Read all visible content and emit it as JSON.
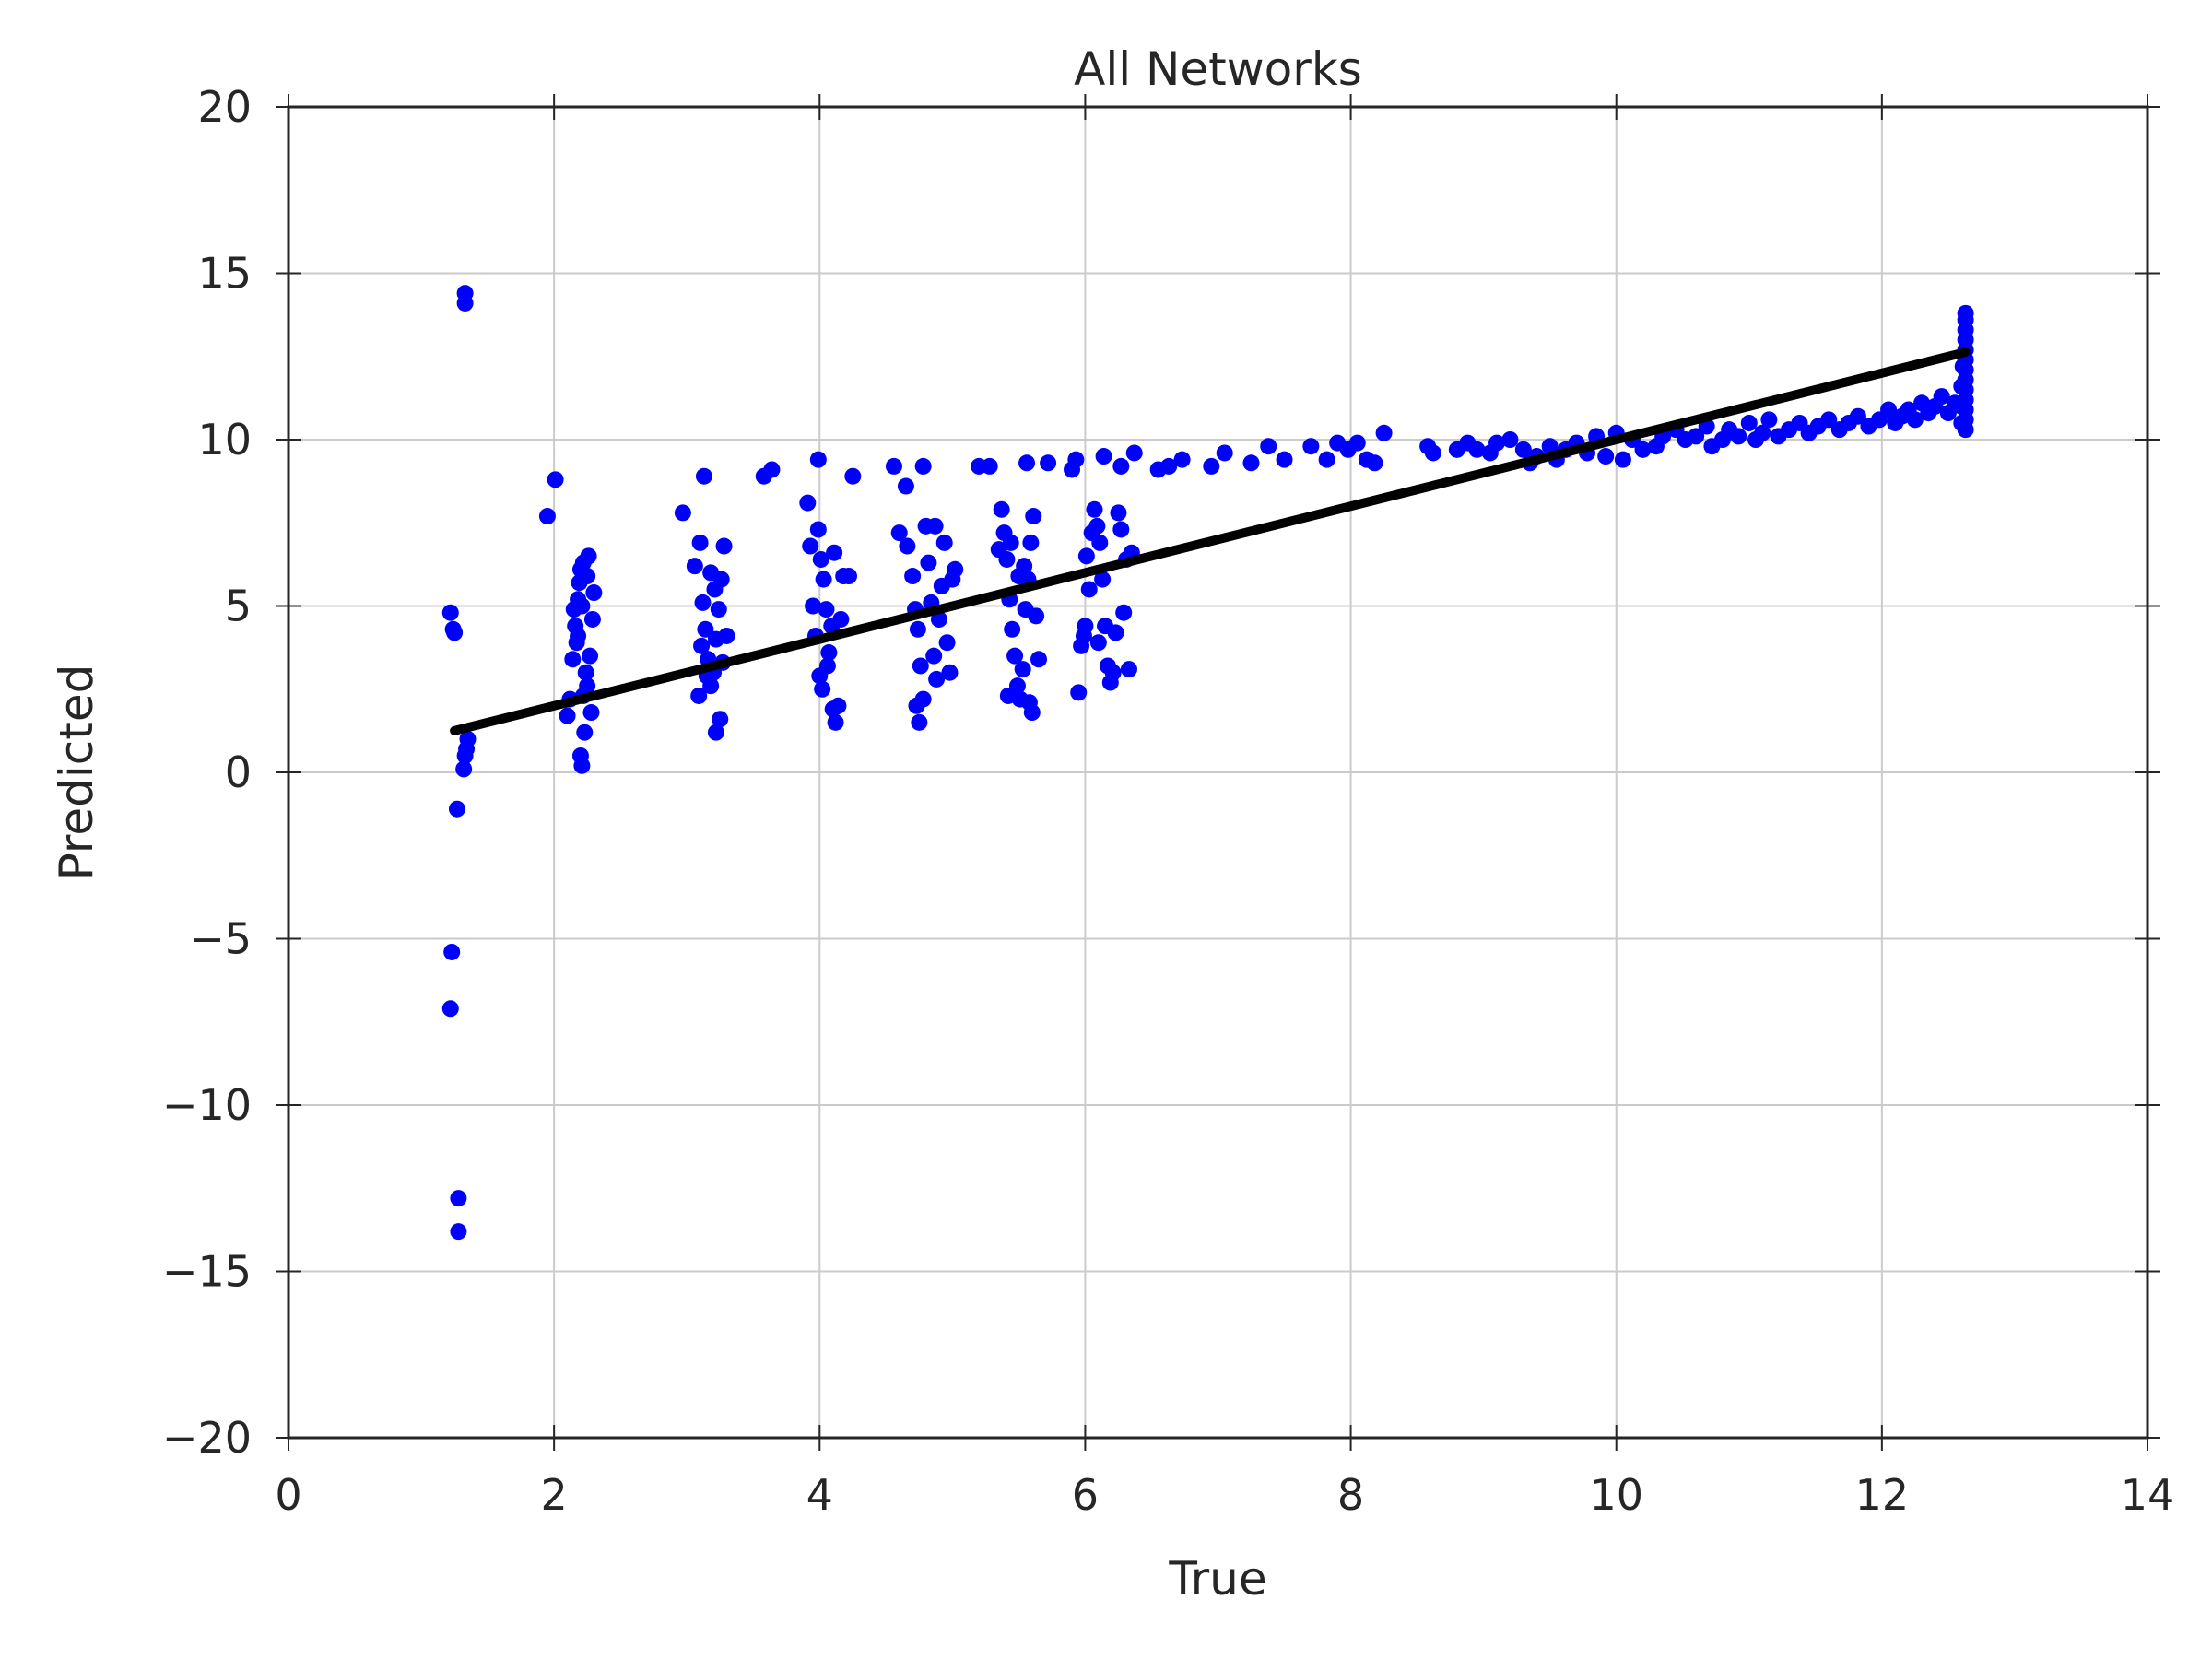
{
  "chart_data": {
    "type": "scatter",
    "title": "All Networks",
    "xlabel": "True",
    "ylabel": "Predicted",
    "xlim": [
      0,
      14
    ],
    "ylim": [
      -20,
      20
    ],
    "x_ticks": [
      0,
      2,
      4,
      6,
      8,
      10,
      12,
      14
    ],
    "y_ticks": [
      -20,
      -15,
      -10,
      -5,
      0,
      5,
      10,
      15,
      20
    ],
    "x_tick_labels": [
      "0",
      "2",
      "4",
      "6",
      "8",
      "10",
      "12",
      "14"
    ],
    "y_tick_labels": [
      "−20",
      "−15",
      "−10",
      "−5",
      "0",
      "5",
      "10",
      "15",
      "20"
    ],
    "grid": true,
    "colors": {
      "points": "#0000ff",
      "fit_line": "#000000",
      "grid": "#cbcbcb",
      "axes": "#262626"
    },
    "series": [
      {
        "type": "scatter",
        "points": [
          [
            1.22,
            4.8
          ],
          [
            1.24,
            4.3
          ],
          [
            1.25,
            4.2
          ],
          [
            1.23,
            -5.4
          ],
          [
            1.22,
            -7.1
          ],
          [
            1.28,
            -12.8
          ],
          [
            1.28,
            -13.8
          ],
          [
            1.27,
            -1.1
          ],
          [
            1.33,
            14.4
          ],
          [
            1.33,
            14.1
          ],
          [
            1.35,
            1.0
          ],
          [
            1.34,
            0.7
          ],
          [
            1.33,
            0.5
          ],
          [
            1.32,
            0.1
          ],
          [
            1.95,
            7.7
          ],
          [
            2.01,
            8.8
          ],
          [
            2.1,
            1.7
          ],
          [
            2.12,
            2.2
          ],
          [
            2.14,
            3.4
          ],
          [
            2.16,
            4.4
          ],
          [
            2.18,
            5.2
          ],
          [
            2.2,
            6.1
          ],
          [
            2.22,
            6.3
          ],
          [
            2.15,
            4.9
          ],
          [
            2.2,
            0.5
          ],
          [
            2.21,
            0.2
          ],
          [
            2.23,
            1.2
          ],
          [
            2.25,
            2.6
          ],
          [
            2.27,
            3.5
          ],
          [
            2.29,
            4.6
          ],
          [
            2.3,
            5.4
          ],
          [
            2.26,
            6.5
          ],
          [
            2.19,
            5.7
          ],
          [
            2.17,
            3.9
          ],
          [
            2.24,
            3.0
          ],
          [
            2.28,
            1.8
          ],
          [
            2.22,
            2.3
          ],
          [
            2.18,
            4.1
          ],
          [
            2.21,
            5.0
          ],
          [
            2.25,
            5.9
          ],
          [
            2.97,
            7.8
          ],
          [
            3.06,
            6.2
          ],
          [
            3.1,
            6.9
          ],
          [
            3.12,
            5.1
          ],
          [
            3.14,
            4.3
          ],
          [
            3.16,
            3.4
          ],
          [
            3.18,
            2.6
          ],
          [
            3.2,
            3.0
          ],
          [
            3.22,
            4.0
          ],
          [
            3.24,
            4.9
          ],
          [
            3.26,
            5.8
          ],
          [
            3.28,
            6.8
          ],
          [
            3.09,
            2.3
          ],
          [
            3.22,
            1.2
          ],
          [
            3.25,
            1.6
          ],
          [
            3.27,
            3.3
          ],
          [
            3.3,
            4.1
          ],
          [
            3.13,
            8.9
          ],
          [
            3.18,
            6.0
          ],
          [
            3.21,
            5.5
          ],
          [
            3.15,
            2.9
          ],
          [
            3.11,
            3.8
          ],
          [
            3.58,
            8.9
          ],
          [
            3.64,
            9.1
          ],
          [
            3.91,
            8.1
          ],
          [
            3.93,
            6.8
          ],
          [
            3.95,
            5.0
          ],
          [
            3.97,
            4.1
          ],
          [
            3.99,
            7.3
          ],
          [
            4.01,
            6.4
          ],
          [
            4.03,
            5.8
          ],
          [
            4.05,
            4.9
          ],
          [
            4.07,
            3.6
          ],
          [
            4.0,
            2.9
          ],
          [
            4.02,
            2.5
          ],
          [
            4.1,
            1.9
          ],
          [
            4.12,
            1.5
          ],
          [
            4.14,
            2.0
          ],
          [
            4.16,
            4.6
          ],
          [
            4.18,
            5.9
          ],
          [
            4.11,
            6.6
          ],
          [
            4.22,
            5.9
          ],
          [
            3.99,
            9.4
          ],
          [
            4.25,
            8.9
          ],
          [
            4.06,
            3.2
          ],
          [
            4.09,
            4.4
          ],
          [
            4.56,
            9.2
          ],
          [
            4.65,
            8.6
          ],
          [
            4.78,
            9.2
          ],
          [
            4.6,
            7.2
          ],
          [
            4.66,
            6.8
          ],
          [
            4.7,
            5.9
          ],
          [
            4.72,
            4.9
          ],
          [
            4.74,
            4.3
          ],
          [
            4.76,
            3.2
          ],
          [
            4.78,
            2.2
          ],
          [
            4.75,
            1.5
          ],
          [
            4.8,
            7.4
          ],
          [
            4.82,
            6.3
          ],
          [
            4.84,
            5.1
          ],
          [
            4.86,
            3.5
          ],
          [
            4.88,
            2.8
          ],
          [
            4.9,
            4.6
          ],
          [
            4.92,
            5.6
          ],
          [
            4.94,
            6.9
          ],
          [
            4.96,
            3.9
          ],
          [
            4.98,
            3.0
          ],
          [
            5.0,
            5.8
          ],
          [
            5.02,
            6.1
          ],
          [
            4.87,
            7.4
          ],
          [
            4.73,
            2.0
          ],
          [
            5.2,
            9.2
          ],
          [
            5.28,
            9.2
          ],
          [
            5.35,
            6.7
          ],
          [
            5.37,
            7.9
          ],
          [
            5.39,
            7.2
          ],
          [
            5.41,
            6.4
          ],
          [
            5.43,
            5.2
          ],
          [
            5.45,
            4.3
          ],
          [
            5.47,
            3.5
          ],
          [
            5.49,
            2.6
          ],
          [
            5.51,
            2.2
          ],
          [
            5.53,
            3.1
          ],
          [
            5.55,
            4.9
          ],
          [
            5.57,
            5.8
          ],
          [
            5.59,
            6.9
          ],
          [
            5.61,
            7.7
          ],
          [
            5.63,
            4.7
          ],
          [
            5.65,
            3.4
          ],
          [
            5.6,
            1.8
          ],
          [
            5.58,
            2.1
          ],
          [
            5.42,
            2.3
          ],
          [
            5.44,
            6.9
          ],
          [
            5.5,
            5.9
          ],
          [
            5.54,
            6.2
          ],
          [
            5.56,
            9.3
          ],
          [
            5.72,
            9.3
          ],
          [
            5.9,
            9.1
          ],
          [
            5.93,
            9.4
          ],
          [
            5.95,
            2.4
          ],
          [
            5.97,
            3.8
          ],
          [
            5.99,
            4.1
          ],
          [
            6.01,
            6.5
          ],
          [
            6.03,
            5.5
          ],
          [
            6.05,
            7.2
          ],
          [
            6.07,
            7.9
          ],
          [
            6.09,
            7.4
          ],
          [
            6.11,
            6.9
          ],
          [
            6.13,
            5.8
          ],
          [
            6.15,
            4.4
          ],
          [
            6.17,
            3.2
          ],
          [
            6.19,
            2.7
          ],
          [
            6.21,
            3.0
          ],
          [
            6.23,
            4.2
          ],
          [
            6.25,
            7.8
          ],
          [
            6.27,
            7.3
          ],
          [
            6.29,
            4.8
          ],
          [
            6.31,
            6.4
          ],
          [
            6.33,
            3.1
          ],
          [
            6.35,
            6.6
          ],
          [
            6.0,
            4.4
          ],
          [
            6.1,
            3.9
          ],
          [
            6.14,
            9.5
          ],
          [
            6.27,
            9.2
          ],
          [
            6.37,
            9.6
          ],
          [
            6.55,
            9.1
          ],
          [
            6.63,
            9.2
          ],
          [
            6.73,
            9.4
          ],
          [
            6.95,
            9.2
          ],
          [
            7.05,
            9.6
          ],
          [
            7.25,
            9.3
          ],
          [
            7.38,
            9.8
          ],
          [
            7.5,
            9.4
          ],
          [
            7.7,
            9.8
          ],
          [
            7.82,
            9.4
          ],
          [
            7.9,
            9.9
          ],
          [
            7.98,
            9.7
          ],
          [
            8.05,
            9.9
          ],
          [
            8.12,
            9.4
          ],
          [
            8.18,
            9.3
          ],
          [
            8.25,
            10.2
          ],
          [
            8.58,
            9.8
          ],
          [
            8.62,
            9.6
          ],
          [
            8.8,
            9.7
          ],
          [
            8.88,
            9.9
          ],
          [
            8.95,
            9.7
          ],
          [
            9.05,
            9.6
          ],
          [
            9.1,
            9.9
          ],
          [
            9.2,
            10.0
          ],
          [
            9.3,
            9.7
          ],
          [
            9.35,
            9.3
          ],
          [
            9.4,
            9.5
          ],
          [
            9.5,
            9.8
          ],
          [
            9.55,
            9.4
          ],
          [
            9.62,
            9.7
          ],
          [
            9.7,
            9.9
          ],
          [
            9.78,
            9.6
          ],
          [
            9.85,
            10.1
          ],
          [
            9.92,
            9.5
          ],
          [
            10.0,
            10.2
          ],
          [
            10.05,
            9.4
          ],
          [
            10.12,
            10.0
          ],
          [
            10.2,
            9.7
          ],
          [
            10.3,
            9.8
          ],
          [
            10.35,
            10.1
          ],
          [
            10.45,
            10.3
          ],
          [
            10.52,
            10.0
          ],
          [
            10.6,
            10.1
          ],
          [
            10.68,
            10.4
          ],
          [
            10.72,
            9.8
          ],
          [
            10.8,
            10.0
          ],
          [
            10.85,
            10.3
          ],
          [
            10.92,
            10.1
          ],
          [
            11.0,
            10.5
          ],
          [
            11.05,
            10.0
          ],
          [
            11.1,
            10.2
          ],
          [
            11.15,
            10.6
          ],
          [
            11.22,
            10.1
          ],
          [
            11.3,
            10.3
          ],
          [
            11.38,
            10.5
          ],
          [
            11.45,
            10.2
          ],
          [
            11.52,
            10.4
          ],
          [
            11.6,
            10.6
          ],
          [
            11.68,
            10.3
          ],
          [
            11.75,
            10.5
          ],
          [
            11.82,
            10.7
          ],
          [
            11.9,
            10.4
          ],
          [
            11.98,
            10.6
          ],
          [
            12.05,
            10.9
          ],
          [
            12.1,
            10.5
          ],
          [
            12.15,
            10.7
          ],
          [
            12.2,
            10.9
          ],
          [
            12.25,
            10.6
          ],
          [
            12.3,
            11.1
          ],
          [
            12.35,
            10.8
          ],
          [
            12.4,
            11.0
          ],
          [
            12.45,
            11.3
          ],
          [
            12.5,
            10.8
          ],
          [
            12.55,
            11.1
          ],
          [
            12.63,
            10.3
          ],
          [
            12.63,
            10.6
          ],
          [
            12.63,
            10.9
          ],
          [
            12.63,
            11.2
          ],
          [
            12.63,
            11.5
          ],
          [
            12.63,
            11.8
          ],
          [
            12.63,
            12.1
          ],
          [
            12.63,
            12.4
          ],
          [
            12.63,
            12.7
          ],
          [
            12.63,
            13.0
          ],
          [
            12.63,
            13.3
          ],
          [
            12.63,
            13.6
          ],
          [
            12.63,
            13.8
          ],
          [
            12.6,
            10.5
          ],
          [
            12.6,
            11.0
          ],
          [
            12.6,
            11.6
          ],
          [
            12.61,
            12.2
          ]
        ]
      },
      {
        "type": "line",
        "points": [
          [
            1.25,
            1.25
          ],
          [
            12.63,
            12.63
          ]
        ]
      }
    ]
  }
}
